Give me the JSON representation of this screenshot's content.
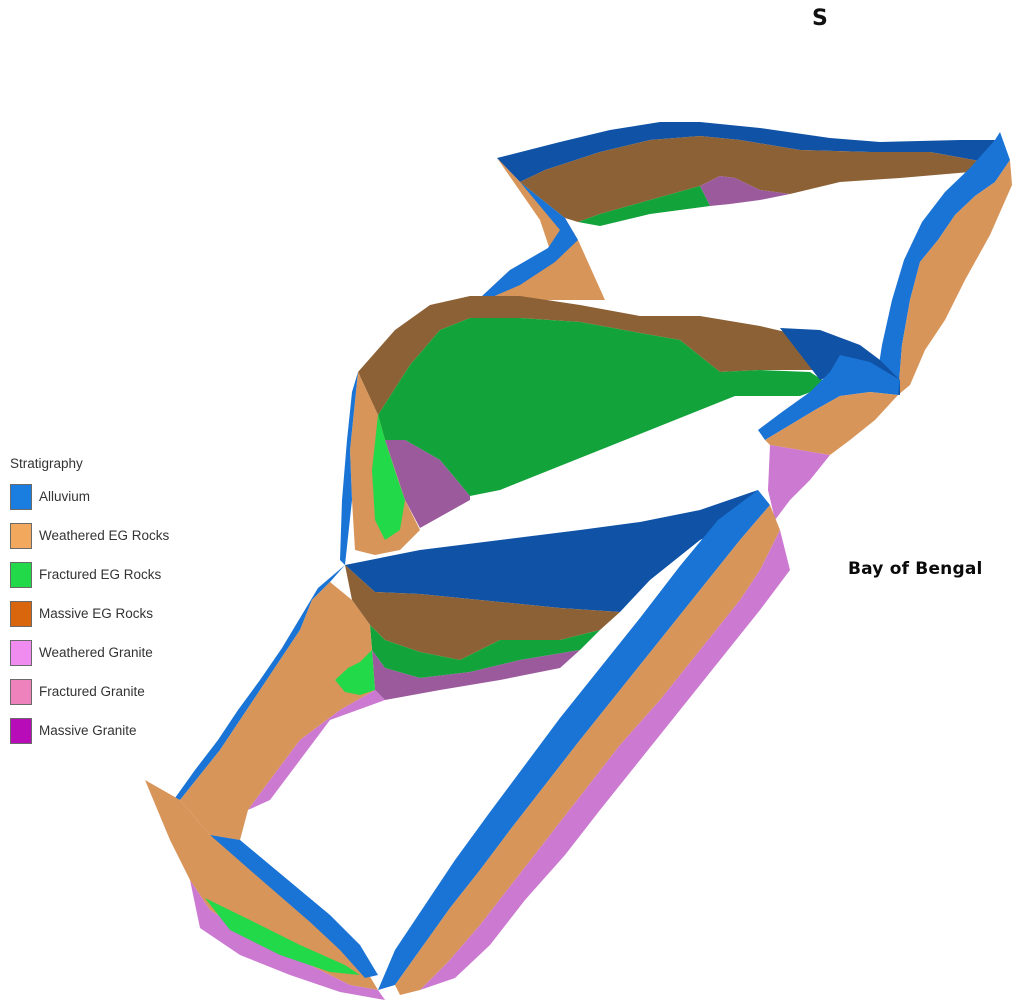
{
  "compass": {
    "label": "S"
  },
  "annotation": {
    "sea": "Bay of Bengal"
  },
  "legend": {
    "title": "Stratigraphy",
    "items": [
      {
        "label": "Alluvium",
        "color": "#1a7ee0"
      },
      {
        "label": "Weathered EG Rocks",
        "color": "#f2a95e"
      },
      {
        "label": "Fractured EG Rocks",
        "color": "#22d94a"
      },
      {
        "label": "Massive EG Rocks",
        "color": "#d9650c"
      },
      {
        "label": "Weathered Granite",
        "color": "#f08cef"
      },
      {
        "label": "Fractured Granite",
        "color": "#ee82bd"
      },
      {
        "label": "Massive Granite",
        "color": "#b70cb7"
      }
    ]
  },
  "shading": {
    "alluvium_top": "#0f52a6",
    "alluvium_side": "#1a74d6",
    "weathered_eg_top": "#8d6136",
    "weathered_eg_side": "#d8955a",
    "fractured_eg_top": "#12a33a",
    "fractured_eg_side": "#22d94a",
    "granite_top": "#9a5a9c",
    "granite_side": "#cc79d1"
  }
}
